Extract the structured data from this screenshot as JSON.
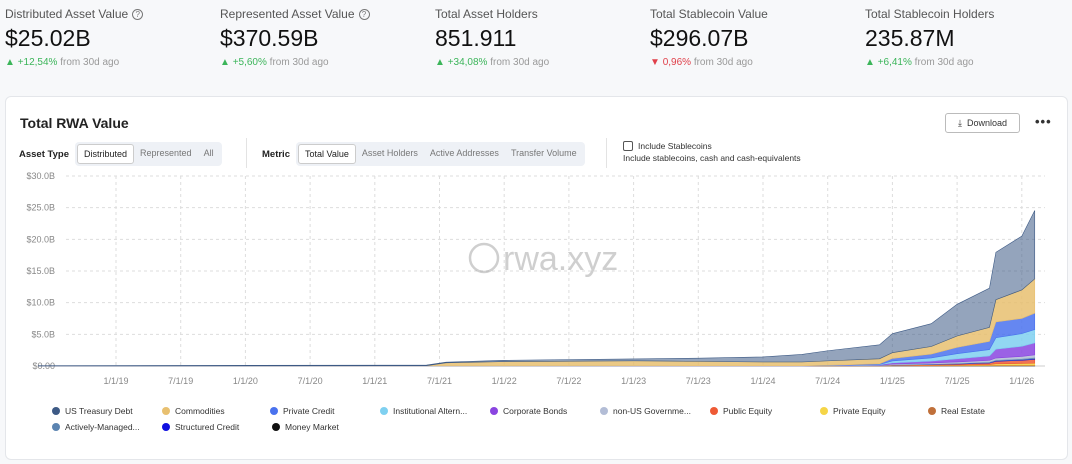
{
  "stats": [
    {
      "label": "Distributed Asset Value",
      "help": true,
      "value": "$25.02B",
      "change": "+12,54%",
      "direction": "up",
      "suffix": "from 30d ago"
    },
    {
      "label": "Represented Asset Value",
      "help": true,
      "value": "$370.59B",
      "change": "+5,60%",
      "direction": "up",
      "suffix": "from 30d ago"
    },
    {
      "label": "Total Asset Holders",
      "help": false,
      "value": "851.911",
      "change": "+34,08%",
      "direction": "up",
      "suffix": "from 30d ago"
    },
    {
      "label": "Total Stablecoin Value",
      "help": false,
      "value": "$296.07B",
      "change": "0,96%",
      "direction": "down",
      "suffix": "from 30d ago"
    },
    {
      "label": "Total Stablecoin Holders",
      "help": false,
      "value": "235.87M",
      "change": "+6,41%",
      "direction": "up",
      "suffix": "from 30d ago"
    }
  ],
  "card": {
    "title": "Total RWA Value",
    "download": "Download",
    "more": "•••",
    "asset_type": {
      "label": "Asset Type",
      "options": [
        "Distributed",
        "Represented",
        "All"
      ],
      "selected": "Distributed"
    },
    "metric": {
      "label": "Metric",
      "options": [
        "Total Value",
        "Asset Holders",
        "Active Addresses",
        "Transfer Volume"
      ],
      "selected": "Total Value"
    },
    "stablecoins": {
      "label": "Include Stablecoins",
      "checked": false,
      "hint": "Include stablecoins, cash and cash-equivalents"
    },
    "watermark": "rwa.xyz"
  },
  "chart_data": {
    "type": "area",
    "stacked": true,
    "title": "Total RWA Value",
    "ylabel": "",
    "xlabel": "",
    "ylim": [
      0,
      30
    ],
    "yticks": [
      "$0.00",
      "$5.0B",
      "$10.0B",
      "$15.0B",
      "$20.0B",
      "$25.0B",
      "$30.0B"
    ],
    "xticks": [
      "1/1/19",
      "7/1/19",
      "1/1/20",
      "7/1/20",
      "1/1/21",
      "7/1/21",
      "1/1/22",
      "7/1/22",
      "1/1/23",
      "7/1/23",
      "1/1/24",
      "7/1/24",
      "1/1/25",
      "7/1/25",
      "1/1/26"
    ],
    "x": [
      2018.4,
      2021.4,
      2021.55,
      2022,
      2023,
      2023.5,
      2024,
      2024.3,
      2024.5,
      2024.9,
      2025.0,
      2025.3,
      2025.5,
      2025.75,
      2025.8,
      2026,
      2026.1
    ],
    "series": [
      {
        "name": "Money Market",
        "color": "#111111",
        "values": [
          0,
          0,
          0,
          0,
          0,
          0,
          0,
          0,
          0,
          0,
          0.02,
          0.03,
          0.03,
          0.04,
          0.05,
          0.05,
          0.05
        ]
      },
      {
        "name": "Real Estate",
        "color": "#c0703a",
        "values": [
          0,
          0,
          0,
          0,
          0.02,
          0.03,
          0.03,
          0.03,
          0.04,
          0.05,
          0.05,
          0.06,
          0.07,
          0.08,
          0.09,
          0.1,
          0.1
        ]
      },
      {
        "name": "Private Equity",
        "color": "#f5d547",
        "values": [
          0,
          0,
          0,
          0,
          0,
          0,
          0,
          0,
          0,
          0,
          0.02,
          0.04,
          0.06,
          0.1,
          0.2,
          0.25,
          0.3
        ]
      },
      {
        "name": "Public Equity",
        "color": "#ee5a35",
        "values": [
          0,
          0,
          0,
          0,
          0,
          0,
          0,
          0,
          0,
          0.02,
          0.05,
          0.1,
          0.15,
          0.25,
          0.4,
          0.5,
          0.6
        ]
      },
      {
        "name": "Structured Credit",
        "color": "#1010e0",
        "values": [
          0,
          0,
          0,
          0,
          0,
          0,
          0,
          0,
          0,
          0,
          0.01,
          0.02,
          0.03,
          0.05,
          0.07,
          0.08,
          0.1
        ]
      },
      {
        "name": "Actively-Managed...",
        "color": "#5b84b1",
        "values": [
          0,
          0,
          0,
          0,
          0,
          0,
          0,
          0,
          0,
          0.02,
          0.05,
          0.08,
          0.1,
          0.12,
          0.15,
          0.18,
          0.2
        ]
      },
      {
        "name": "non-US Governme...",
        "color": "#b3bdd6",
        "values": [
          0,
          0,
          0,
          0,
          0,
          0,
          0,
          0,
          0.02,
          0.05,
          0.1,
          0.15,
          0.2,
          0.25,
          0.3,
          0.35,
          0.4
        ]
      },
      {
        "name": "Corporate Bonds",
        "color": "#8a45e0",
        "values": [
          0,
          0,
          0,
          0,
          0,
          0,
          0,
          0,
          0,
          0.05,
          0.2,
          0.3,
          0.5,
          0.7,
          1.4,
          1.6,
          1.9
        ]
      },
      {
        "name": "Institutional Altern...",
        "color": "#7fd0f0",
        "values": [
          0,
          0,
          0,
          0,
          0,
          0,
          0,
          0,
          0,
          0.05,
          0.3,
          0.5,
          0.8,
          1.0,
          1.8,
          2.0,
          2.1
        ]
      },
      {
        "name": "Private Credit",
        "color": "#4a72ee",
        "values": [
          0,
          0,
          0,
          0,
          0,
          0,
          0,
          0,
          0.05,
          0.1,
          0.4,
          0.6,
          1.0,
          1.3,
          2.5,
          2.4,
          2.6
        ]
      },
      {
        "name": "Commodities",
        "color": "#e8c070",
        "values": [
          0,
          0.05,
          0.5,
          0.7,
          0.8,
          0.7,
          0.6,
          0.6,
          0.7,
          0.8,
          0.9,
          1.2,
          1.8,
          2.2,
          3.5,
          4.5,
          5.4
        ]
      },
      {
        "name": "US Treasury Debt",
        "color": "#3d5a85",
        "values": [
          0.05,
          0.1,
          0.1,
          0.2,
          0.3,
          0.5,
          0.8,
          1.2,
          1.6,
          2.2,
          3.0,
          3.6,
          5.0,
          6.2,
          7.5,
          8.5,
          10.8
        ]
      }
    ],
    "legend": [
      "US Treasury Debt",
      "Commodities",
      "Private Credit",
      "Institutional Altern...",
      "Corporate Bonds",
      "non-US Governme...",
      "Public Equity",
      "Private Equity",
      "Real Estate",
      "Actively-Managed...",
      "Structured Credit",
      "Money Market"
    ],
    "legend_position": "bottom",
    "grid": true
  }
}
